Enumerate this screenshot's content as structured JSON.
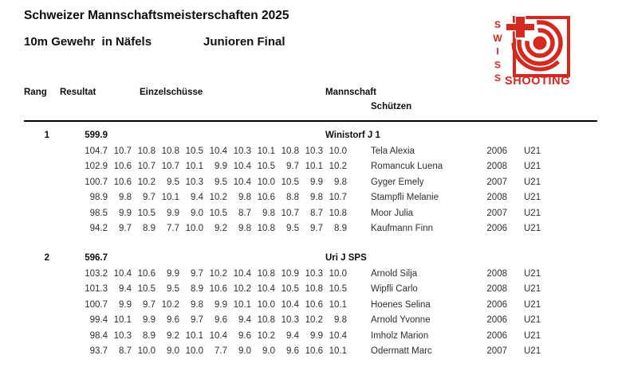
{
  "header": {
    "title": "Schweizer Mannschaftsmeisterschaften 2025",
    "event": "10m Gewehr  in Näfels",
    "category": "Junioren Final"
  },
  "logo": {
    "swiss": "SWISS",
    "shooting": "SHOOTING",
    "color": "#d5281e"
  },
  "columns": {
    "rang": "Rang",
    "resultat": "Resultat",
    "einzelschuesse": "Einzelschüsse",
    "mannschaft": "Mannschaft",
    "schuetzen": "Schützen"
  },
  "teams": [
    {
      "rank": "1",
      "total": "599.9",
      "name": "Winistorf J 1",
      "shooters": [
        {
          "result": "104.7",
          "shots": [
            "10.7",
            "10.8",
            "10.8",
            "10.5",
            "10.4",
            "10.3",
            "10.1",
            "10.8",
            "10.3",
            "10.0"
          ],
          "name": "Tela Alexia",
          "year": "2006",
          "cat": "U21"
        },
        {
          "result": "102.9",
          "shots": [
            "10.6",
            "10.7",
            "10.7",
            "10.1",
            "9.9",
            "10.4",
            "10.5",
            "9.7",
            "10.1",
            "10.2"
          ],
          "name": "Romancuk Luena",
          "year": "2008",
          "cat": "U21"
        },
        {
          "result": "100.7",
          "shots": [
            "10.6",
            "10.2",
            "9.5",
            "10.3",
            "9.5",
            "10.4",
            "10.0",
            "10.5",
            "9.9",
            "9.8"
          ],
          "name": "Gyger Emely",
          "year": "2007",
          "cat": "U21"
        },
        {
          "result": "98.9",
          "shots": [
            "9.8",
            "9.7",
            "10.1",
            "9.4",
            "10.2",
            "9.8",
            "10.6",
            "8.8",
            "9.8",
            "10.7"
          ],
          "name": "Stampfli Melanie",
          "year": "2008",
          "cat": "U21"
        },
        {
          "result": "98.5",
          "shots": [
            "9.9",
            "10.5",
            "9.9",
            "9.0",
            "10.5",
            "8.7",
            "9.8",
            "10.7",
            "8.7",
            "10.8"
          ],
          "name": "Moor Julia",
          "year": "2007",
          "cat": "U21"
        },
        {
          "result": "94.2",
          "shots": [
            "9.7",
            "8.9",
            "7.7",
            "10.0",
            "9.2",
            "9.8",
            "10.8",
            "9.5",
            "9.7",
            "8.9"
          ],
          "name": "Kaufmann Finn",
          "year": "2006",
          "cat": "U21"
        }
      ]
    },
    {
      "rank": "2",
      "total": "596.7",
      "name": "Uri J SPS",
      "shooters": [
        {
          "result": "103.2",
          "shots": [
            "10.4",
            "10.6",
            "9.9",
            "9.7",
            "10.2",
            "10.4",
            "10.8",
            "10.9",
            "10.3",
            "10.0"
          ],
          "name": "Arnold Silja",
          "year": "2008",
          "cat": "U21"
        },
        {
          "result": "101.3",
          "shots": [
            "9.4",
            "10.5",
            "9.5",
            "8.9",
            "10.6",
            "10.2",
            "10.4",
            "10.5",
            "10.8",
            "10.5"
          ],
          "name": "Wipfli Carlo",
          "year": "2008",
          "cat": "U21"
        },
        {
          "result": "100.7",
          "shots": [
            "9.9",
            "9.7",
            "10.2",
            "9.8",
            "9.9",
            "10.1",
            "10.0",
            "10.4",
            "10.6",
            "10.1"
          ],
          "name": "Hoenes Selina",
          "year": "2006",
          "cat": "U21"
        },
        {
          "result": "99.4",
          "shots": [
            "10.1",
            "9.9",
            "9.6",
            "9.7",
            "9.6",
            "9.4",
            "10.8",
            "10.3",
            "10.2",
            "9.8"
          ],
          "name": "Arnold Yvonne",
          "year": "2006",
          "cat": "U21"
        },
        {
          "result": "98.4",
          "shots": [
            "10.3",
            "8.9",
            "9.2",
            "10.1",
            "10.4",
            "9.6",
            "10.2",
            "9.4",
            "9.9",
            "10.4"
          ],
          "name": "Imholz Marion",
          "year": "2006",
          "cat": "U21"
        },
        {
          "result": "93.7",
          "shots": [
            "8.7",
            "10.0",
            "9.0",
            "10.0",
            "7.7",
            "9.0",
            "9.0",
            "9.6",
            "10.6",
            "10.1"
          ],
          "name": "Odermatt Marc",
          "year": "2007",
          "cat": "U21"
        }
      ]
    }
  ]
}
